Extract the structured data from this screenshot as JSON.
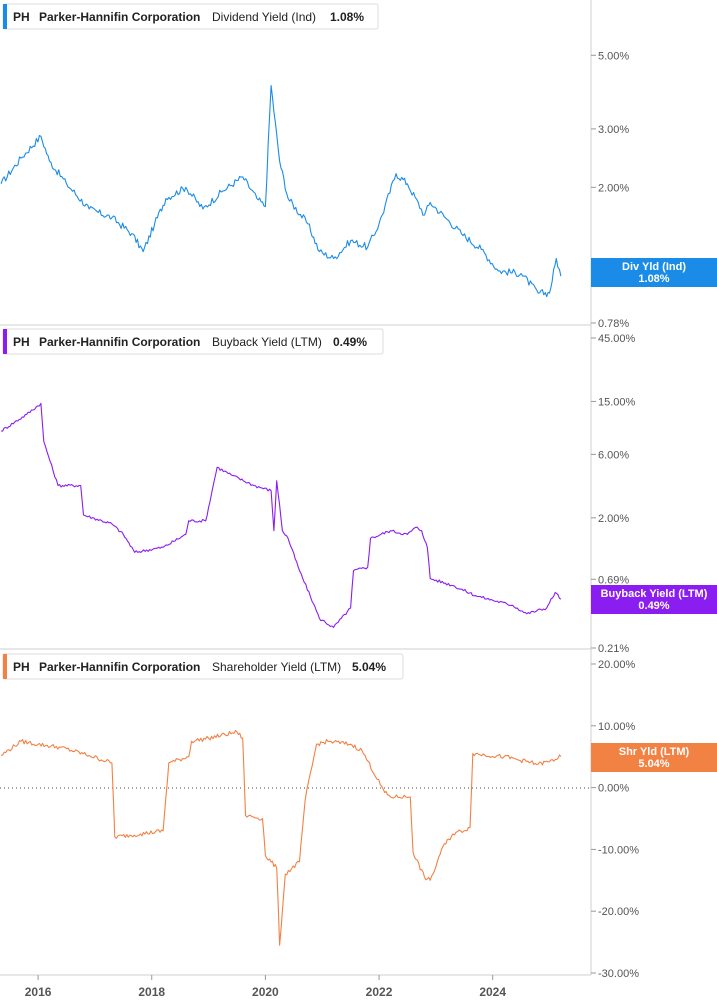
{
  "legend_ticker": "PH",
  "legend_company": "Parker-Hannifin Corporation",
  "accent_colors": {
    "dividend": "#1a8ce8",
    "buyback": "#8a1ef0",
    "shareholder": "#f28144"
  },
  "x_axis_ticks": [
    "2016",
    "2018",
    "2020",
    "2022",
    "2024"
  ],
  "chart_data": [
    {
      "type": "line",
      "metric": "Dividend Yield (Ind)",
      "current_value": "1.08%",
      "tag_label": "Div Yld (Ind)",
      "tag_value": "1.08%",
      "color": "#1a8ce8",
      "y_scale": "log",
      "ylim": [
        0.78,
        6.0
      ],
      "y_ticks": [
        "5.00%",
        "3.00%",
        "2.00%",
        "0.78%"
      ],
      "y_tick_values": [
        5.0,
        3.0,
        2.0,
        0.78
      ],
      "x": [
        2015.35,
        2015.7,
        2016.05,
        2016.2,
        2016.5,
        2016.9,
        2017.3,
        2017.65,
        2017.85,
        2018.05,
        2018.25,
        2018.6,
        2018.9,
        2019.25,
        2019.6,
        2019.85,
        2020.0,
        2020.1,
        2020.25,
        2020.4,
        2020.75,
        2020.95,
        2021.2,
        2021.5,
        2021.8,
        2022.0,
        2022.3,
        2022.5,
        2022.8,
        2022.9,
        2023.2,
        2023.45,
        2023.8,
        2024.1,
        2024.5,
        2024.8,
        2025.0,
        2025.12,
        2025.2
      ],
      "y": [
        2.05,
        2.45,
        2.85,
        2.4,
        2.05,
        1.72,
        1.62,
        1.45,
        1.28,
        1.55,
        1.85,
        2.0,
        1.72,
        1.95,
        2.15,
        1.85,
        1.75,
        4.05,
        2.4,
        1.85,
        1.55,
        1.28,
        1.22,
        1.38,
        1.32,
        1.55,
        2.2,
        2.05,
        1.65,
        1.8,
        1.6,
        1.45,
        1.3,
        1.12,
        1.1,
        0.96,
        0.96,
        1.22,
        1.08
      ]
    },
    {
      "type": "line",
      "metric": "Buyback Yield (LTM)",
      "current_value": "0.49%",
      "tag_label": "Buyback Yield (LTM)",
      "tag_value": "0.49%",
      "color": "#8a1ef0",
      "y_scale": "log",
      "ylim": [
        0.21,
        45.0
      ],
      "y_ticks": [
        "45.00%",
        "15.00%",
        "6.00%",
        "2.00%",
        "0.69%",
        "0.21%"
      ],
      "y_tick_values": [
        45.0,
        15.0,
        6.0,
        2.0,
        0.69,
        0.21
      ],
      "x": [
        2015.35,
        2015.8,
        2016.05,
        2016.1,
        2016.35,
        2016.75,
        2016.8,
        2017.3,
        2017.5,
        2017.7,
        2018.2,
        2018.6,
        2018.65,
        2018.95,
        2019.1,
        2019.15,
        2019.4,
        2019.8,
        2020.1,
        2020.15,
        2020.2,
        2020.3,
        2020.4,
        2020.6,
        2020.85,
        2020.95,
        2021.2,
        2021.5,
        2021.55,
        2021.8,
        2021.85,
        2022.2,
        2022.5,
        2022.65,
        2022.75,
        2022.85,
        2022.9,
        2023.3,
        2023.7,
        2024.0,
        2024.35,
        2024.6,
        2024.95,
        2025.1,
        2025.2
      ],
      "y": [
        9.0,
        12.0,
        14.5,
        7.5,
        3.5,
        3.5,
        2.1,
        1.8,
        1.5,
        1.1,
        1.2,
        1.5,
        1.9,
        1.9,
        3.8,
        4.8,
        4.2,
        3.5,
        3.2,
        1.6,
        3.8,
        1.6,
        1.4,
        0.8,
        0.45,
        0.35,
        0.3,
        0.42,
        0.8,
        0.85,
        1.4,
        1.6,
        1.5,
        1.7,
        1.6,
        1.2,
        0.7,
        0.62,
        0.52,
        0.48,
        0.44,
        0.38,
        0.42,
        0.55,
        0.49
      ]
    },
    {
      "type": "line",
      "metric": "Shareholder Yield (LTM)",
      "current_value": "5.04%",
      "tag_label": "Shr Yld (LTM)",
      "tag_value": "5.04%",
      "color": "#f28144",
      "y_scale": "linear",
      "ylim": [
        -30.0,
        20.0
      ],
      "y_ticks": [
        "20.00%",
        "10.00%",
        "0.00%",
        "-10.00%",
        "-20.00%",
        "-30.00%"
      ],
      "y_tick_values": [
        20.0,
        10.0,
        0.0,
        -10.0,
        -20.0,
        -30.0
      ],
      "x": [
        2015.35,
        2015.7,
        2016.0,
        2016.4,
        2016.9,
        2017.3,
        2017.35,
        2017.8,
        2018.2,
        2018.3,
        2018.65,
        2018.7,
        2019.0,
        2019.5,
        2019.6,
        2019.65,
        2019.95,
        2020.0,
        2020.2,
        2020.25,
        2020.35,
        2020.6,
        2020.7,
        2020.9,
        2021.1,
        2021.5,
        2021.7,
        2022.1,
        2022.2,
        2022.55,
        2022.6,
        2022.8,
        2022.9,
        2022.95,
        2023.1,
        2023.3,
        2023.6,
        2023.65,
        2024.2,
        2024.8,
        2025.0,
        2025.2
      ],
      "y": [
        5.2,
        7.5,
        7.0,
        6.5,
        5.2,
        4.0,
        -8.0,
        -7.5,
        -7.0,
        4.0,
        5.0,
        7.5,
        8.0,
        9.0,
        8.0,
        -4.5,
        -5.0,
        -11.0,
        -13.0,
        -25.5,
        -14.0,
        -12.0,
        -2.0,
        7.0,
        7.5,
        7.0,
        6.0,
        -0.8,
        -1.5,
        -1.5,
        -10.5,
        -14.5,
        -15.0,
        -14.0,
        -10.0,
        -7.5,
        -6.5,
        5.5,
        5.0,
        3.8,
        4.2,
        5.04
      ]
    }
  ]
}
